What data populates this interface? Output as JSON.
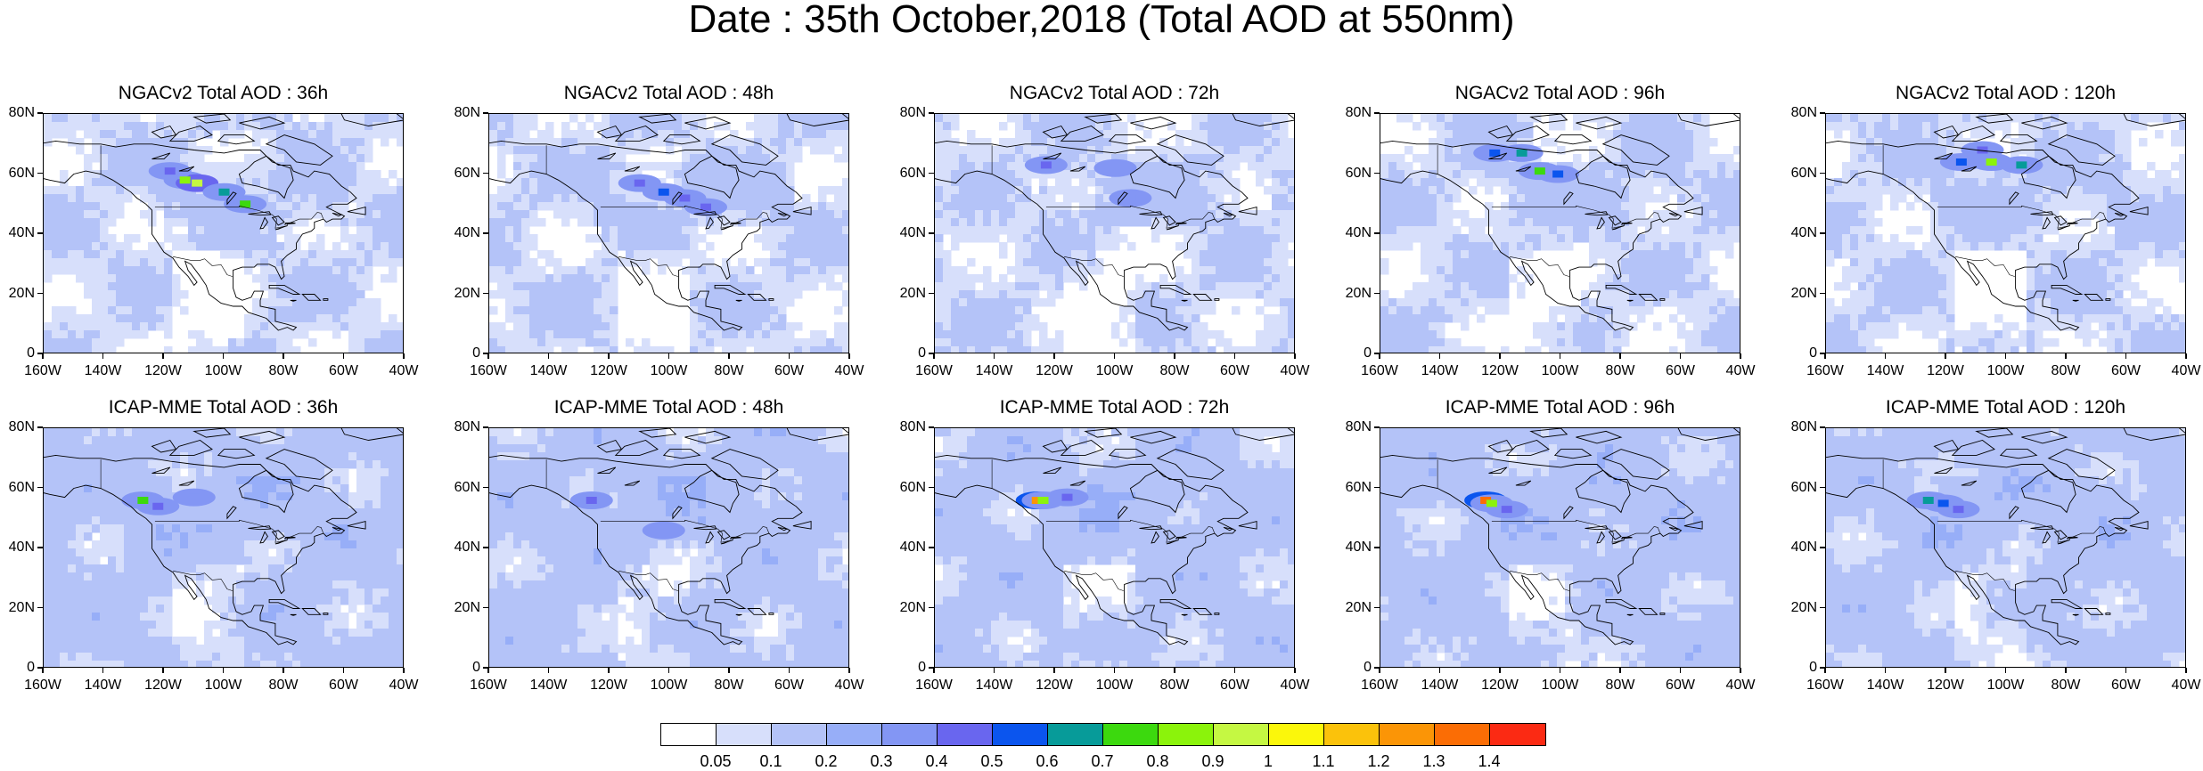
{
  "title": "Date : 35th October,2018 (Total AOD at 550nm)",
  "panels": [
    {
      "title": "NGACv2 Total AOD : 36h",
      "hotspots": [
        {
          "lon": -113,
          "lat": 58,
          "aod": 0.8
        },
        {
          "lon": -109,
          "lat": 57,
          "aod": 0.9
        },
        {
          "lon": -100,
          "lat": 54,
          "aod": 0.6
        },
        {
          "lon": -93,
          "lat": 50,
          "aod": 0.7
        },
        {
          "lon": -118,
          "lat": 61,
          "aod": 0.4
        }
      ]
    },
    {
      "title": "NGACv2 Total AOD : 48h",
      "hotspots": [
        {
          "lon": -110,
          "lat": 57,
          "aod": 0.4
        },
        {
          "lon": -102,
          "lat": 54,
          "aod": 0.5
        },
        {
          "lon": -95,
          "lat": 52,
          "aod": 0.4
        },
        {
          "lon": -88,
          "lat": 49,
          "aod": 0.4
        }
      ]
    },
    {
      "title": "NGACv2 Total AOD : 72h",
      "hotspots": [
        {
          "lon": -123,
          "lat": 63,
          "aod": 0.4
        },
        {
          "lon": -100,
          "lat": 62,
          "aod": 0.3
        },
        {
          "lon": -95,
          "lat": 52,
          "aod": 0.3
        }
      ]
    },
    {
      "title": "NGACv2 Total AOD : 96h",
      "hotspots": [
        {
          "lon": -122,
          "lat": 67,
          "aod": 0.5
        },
        {
          "lon": -113,
          "lat": 67,
          "aod": 0.6
        },
        {
          "lon": -107,
          "lat": 61,
          "aod": 0.7
        },
        {
          "lon": -101,
          "lat": 60,
          "aod": 0.5
        }
      ]
    },
    {
      "title": "NGACv2 Total AOD : 120h",
      "hotspots": [
        {
          "lon": -115,
          "lat": 64,
          "aod": 0.5
        },
        {
          "lon": -105,
          "lat": 64,
          "aod": 0.8
        },
        {
          "lon": -95,
          "lat": 63,
          "aod": 0.6
        },
        {
          "lon": -108,
          "lat": 68,
          "aod": 0.4
        }
      ]
    },
    {
      "title": "ICAP-MME Total AOD : 36h",
      "hotspots": [
        {
          "lon": -127,
          "lat": 56,
          "aod": 0.7
        },
        {
          "lon": -122,
          "lat": 54,
          "aod": 0.4
        },
        {
          "lon": -110,
          "lat": 57,
          "aod": 0.3
        }
      ]
    },
    {
      "title": "ICAP-MME Total AOD : 48h",
      "hotspots": [
        {
          "lon": -126,
          "lat": 56,
          "aod": 0.4
        },
        {
          "lon": -102,
          "lat": 46,
          "aod": 0.3
        }
      ]
    },
    {
      "title": "ICAP-MME Total AOD : 72h",
      "hotspots": [
        {
          "lon": -126,
          "lat": 56,
          "aod": 1.2
        },
        {
          "lon": -124,
          "lat": 56,
          "aod": 0.8
        },
        {
          "lon": -116,
          "lat": 57,
          "aod": 0.4
        }
      ]
    },
    {
      "title": "ICAP-MME Total AOD : 96h",
      "hotspots": [
        {
          "lon": -125,
          "lat": 56,
          "aod": 1.3
        },
        {
          "lon": -123,
          "lat": 55,
          "aod": 0.8
        },
        {
          "lon": -118,
          "lat": 53,
          "aod": 0.4
        }
      ]
    },
    {
      "title": "ICAP-MME Total AOD : 120h",
      "hotspots": [
        {
          "lon": -126,
          "lat": 56,
          "aod": 0.6
        },
        {
          "lon": -121,
          "lat": 55,
          "aod": 0.5
        },
        {
          "lon": -116,
          "lat": 53,
          "aod": 0.4
        }
      ]
    }
  ],
  "lon_ticks": [
    "160W",
    "140W",
    "120W",
    "100W",
    "80W",
    "60W",
    "40W"
  ],
  "lat_ticks": [
    "0",
    "20N",
    "40N",
    "60N",
    "80N"
  ],
  "lon_range": [
    -160,
    -40
  ],
  "lat_range": [
    0,
    80
  ],
  "colorbar": {
    "labels": [
      "0.05",
      "0.1",
      "0.2",
      "0.3",
      "0.4",
      "0.5",
      "0.6",
      "0.7",
      "0.8",
      "0.9",
      "1",
      "1.1",
      "1.2",
      "1.3",
      "1.4"
    ],
    "colors": [
      "#ffffff",
      "#d7dffb",
      "#b4c3f8",
      "#97aef8",
      "#8396f4",
      "#6966ef",
      "#0b55ee",
      "#079b99",
      "#3cd90e",
      "#8bf30b",
      "#c5f842",
      "#fbf70b",
      "#fbc20b",
      "#fb9506",
      "#fb6d05",
      "#fb2a13"
    ]
  }
}
